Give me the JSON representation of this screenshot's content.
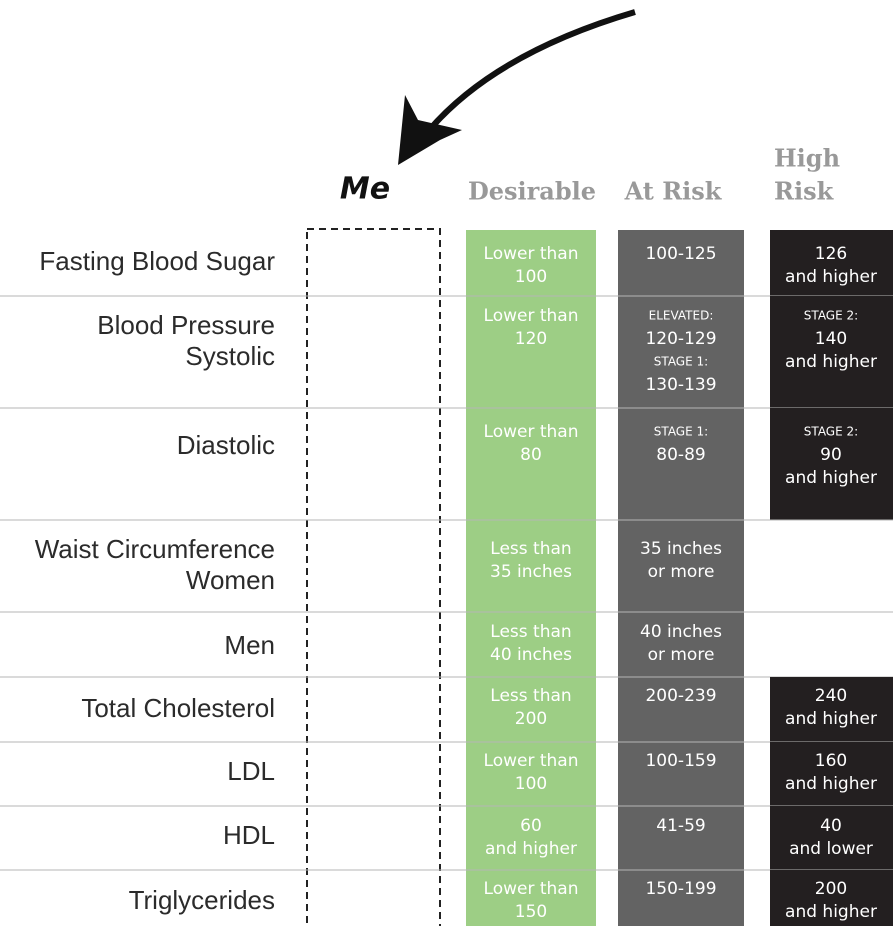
{
  "headers": {
    "me": "Me",
    "desirable": "Desirable",
    "at_risk": "At Risk",
    "high_risk": [
      "High",
      "Risk"
    ]
  },
  "rows": [
    {
      "label": [
        "Fasting Blood Sugar"
      ],
      "desirable": [
        "Lower than",
        "100"
      ],
      "at_risk": [
        "100-125"
      ],
      "high_risk": [
        "126",
        "and higher"
      ]
    },
    {
      "label": [
        "Blood Pressure",
        "Systolic"
      ],
      "desirable": [
        "Lower than",
        "120"
      ],
      "at_risk": [
        "ELEVATED:",
        "120-129",
        "STAGE 1:",
        "130-139"
      ],
      "high_risk": [
        "STAGE 2:",
        "140",
        "and higher"
      ]
    },
    {
      "label": [
        "Diastolic"
      ],
      "desirable": [
        "Lower than",
        "80"
      ],
      "at_risk": [
        "STAGE 1:",
        "80-89"
      ],
      "high_risk": [
        "STAGE 2:",
        "90",
        "and higher"
      ]
    },
    {
      "label": [
        "Waist Circumference",
        "Women"
      ],
      "desirable": [
        "Less than",
        "35 inches"
      ],
      "at_risk": [
        "35 inches",
        "or more"
      ],
      "high_risk": []
    },
    {
      "label": [
        "Men"
      ],
      "desirable": [
        "Less than",
        "40 inches"
      ],
      "at_risk": [
        "40 inches",
        "or more"
      ],
      "high_risk": []
    },
    {
      "label": [
        "Total Cholesterol"
      ],
      "desirable": [
        "Less than",
        "200"
      ],
      "at_risk": [
        "200-239"
      ],
      "high_risk": [
        "240",
        "and higher"
      ]
    },
    {
      "label": [
        "LDL"
      ],
      "desirable": [
        "Lower than",
        "100"
      ],
      "at_risk": [
        "100-159"
      ],
      "high_risk": [
        "160",
        "and higher"
      ]
    },
    {
      "label": [
        "HDL"
      ],
      "desirable": [
        "60",
        "and higher"
      ],
      "at_risk": [
        "41-59"
      ],
      "high_risk": [
        "40",
        "and lower"
      ]
    },
    {
      "label": [
        "Triglycerides"
      ],
      "desirable": [
        "Lower than",
        "150"
      ],
      "at_risk": [
        "150-199"
      ],
      "high_risk": [
        "200",
        "and higher"
      ]
    }
  ]
}
